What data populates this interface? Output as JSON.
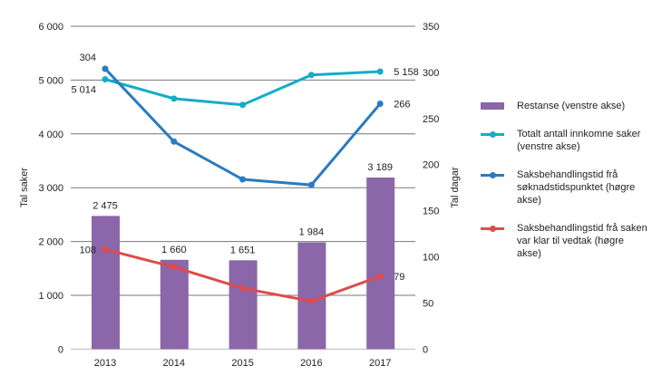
{
  "chart_data": {
    "type": "bar+line",
    "categories": [
      "2013",
      "2014",
      "2015",
      "2016",
      "2017"
    ],
    "y_left": {
      "label": "Tal saker",
      "ylim": [
        0,
        6000
      ],
      "ticks": [
        0,
        1000,
        2000,
        3000,
        4000,
        5000,
        6000
      ],
      "tick_labels": [
        "0",
        "1 000",
        "2 000",
        "3 000",
        "4 000",
        "5 000",
        "6 000"
      ]
    },
    "y_right": {
      "label": "Tal dagar",
      "ylim": [
        0,
        350
      ],
      "ticks": [
        0,
        50,
        100,
        150,
        200,
        250,
        300,
        350
      ],
      "tick_labels": [
        "0",
        "50",
        "100",
        "150",
        "200",
        "250",
        "300",
        "350"
      ]
    },
    "grid": true,
    "legend_position": "right",
    "series": [
      {
        "name": "Restanse (venstre akse)",
        "type": "bar",
        "axis": "left",
        "color": "#8b66a8",
        "values": [
          2475,
          1660,
          1651,
          1984,
          3189
        ],
        "labels": [
          "2 475",
          "1 660",
          "1 651",
          "1 984",
          "3 189"
        ]
      },
      {
        "name": "Totalt antall innkomne saker (venstre akse)",
        "type": "line",
        "axis": "left",
        "color": "#12adc8",
        "values": [
          5014,
          4656,
          4540,
          5096,
          5158
        ],
        "labels": [
          "5 014",
          "",
          "",
          "",
          "5 158"
        ]
      },
      {
        "name": "Saksbehandlingstid frå søknadstidspunktet (høgre akse)",
        "type": "line",
        "axis": "right",
        "color": "#2a7bc0",
        "values": [
          304,
          225,
          184,
          178,
          266
        ],
        "labels": [
          "304",
          "",
          "",
          "",
          "266"
        ]
      },
      {
        "name": "Saksbehandlingstid frå saken var klar til vedtak (høgre akse)",
        "type": "line",
        "axis": "right",
        "color": "#e04a4a",
        "values": [
          108,
          89,
          66,
          52,
          79
        ],
        "labels": [
          "108",
          "",
          "",
          "",
          "79"
        ]
      }
    ]
  },
  "legend": [
    {
      "label": "Restanse (venstre akse)"
    },
    {
      "label": "Totalt antall innkomne saker (venstre akse)"
    },
    {
      "label": "Saksbehandlingstid frå søknadstidspunktet (høgre akse)"
    },
    {
      "label": "Saksbehandlingstid frå saken var klar til vedtak (høgre akse)"
    }
  ]
}
